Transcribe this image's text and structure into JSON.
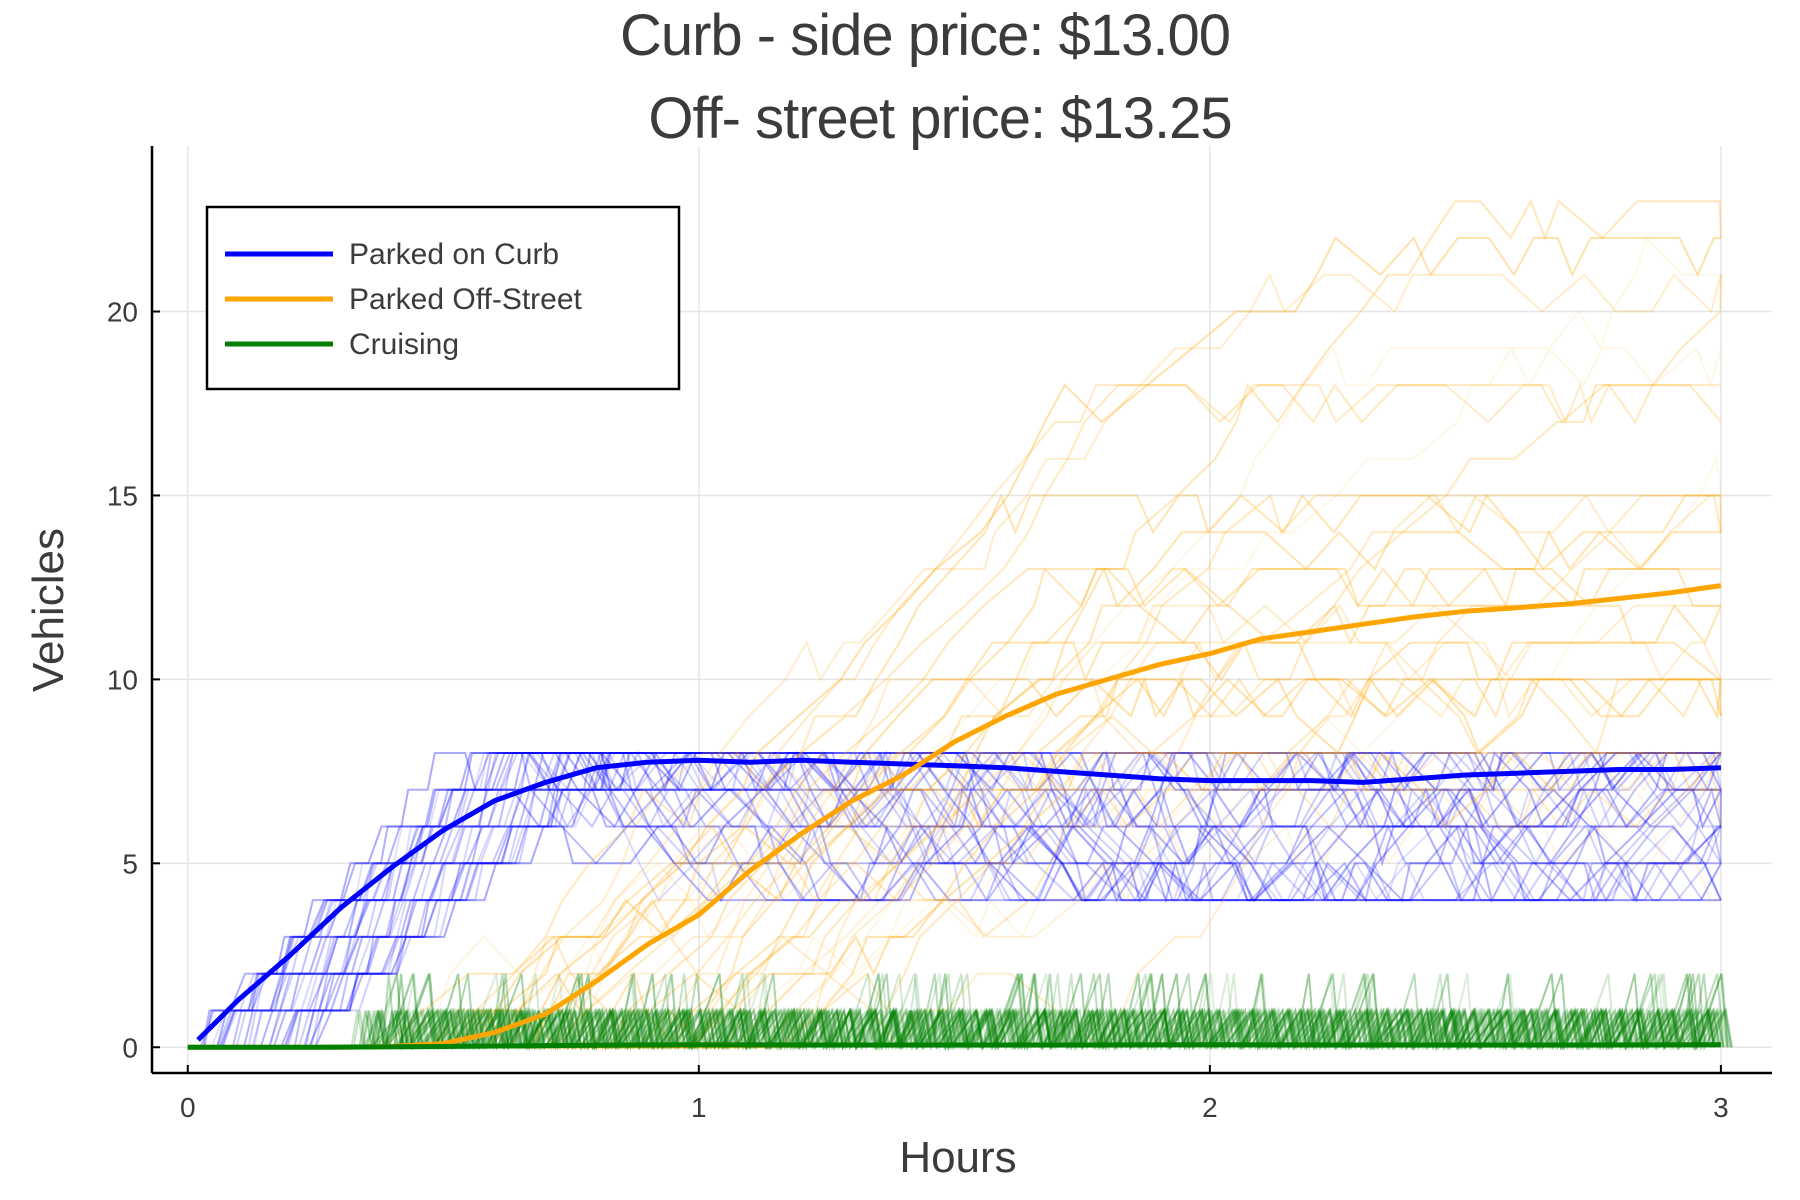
{
  "chart_data": {
    "type": "line",
    "title_line1": "Curb - side price: $13.00",
    "title_line2": "Off- street price: $13.25",
    "xlabel": "Hours",
    "ylabel": "Vehicles",
    "xlim": [
      -0.07,
      3.1
    ],
    "ylim": [
      -0.7,
      24.5
    ],
    "xticks": [
      0,
      1,
      2,
      3
    ],
    "yticks": [
      0,
      5,
      10,
      15,
      20
    ],
    "xtick_labels": [
      "0",
      "1",
      "2",
      "3"
    ],
    "ytick_labels": [
      "0",
      "5",
      "10",
      "15",
      "20"
    ],
    "grid": true,
    "legend_position": "top-left",
    "colors": {
      "curb": "#0000ff",
      "offstreet": "#ffa500",
      "cruising": "#008000"
    },
    "series": [
      {
        "name": "Parked on Curb",
        "x": [
          0.02,
          0.1,
          0.2,
          0.3,
          0.4,
          0.5,
          0.6,
          0.7,
          0.8,
          0.9,
          1.0,
          1.1,
          1.2,
          1.3,
          1.4,
          1.5,
          1.6,
          1.7,
          1.8,
          1.9,
          2.0,
          2.1,
          2.2,
          2.3,
          2.4,
          2.5,
          2.6,
          2.7,
          2.8,
          2.9,
          3.0
        ],
        "values": [
          0.2,
          1.3,
          2.5,
          3.8,
          4.9,
          5.9,
          6.7,
          7.2,
          7.6,
          7.75,
          7.8,
          7.75,
          7.8,
          7.75,
          7.7,
          7.65,
          7.6,
          7.5,
          7.4,
          7.3,
          7.25,
          7.25,
          7.25,
          7.2,
          7.3,
          7.4,
          7.45,
          7.5,
          7.55,
          7.55,
          7.6
        ]
      },
      {
        "name": "Parked Off-Street",
        "x": [
          0.0,
          0.1,
          0.2,
          0.3,
          0.4,
          0.5,
          0.6,
          0.7,
          0.8,
          0.9,
          1.0,
          1.1,
          1.2,
          1.3,
          1.4,
          1.5,
          1.6,
          1.7,
          1.8,
          1.9,
          2.0,
          2.1,
          2.2,
          2.3,
          2.4,
          2.5,
          2.6,
          2.7,
          2.8,
          2.9,
          3.0
        ],
        "values": [
          0.0,
          0.0,
          0.0,
          0.0,
          0.02,
          0.1,
          0.4,
          0.9,
          1.8,
          2.8,
          3.6,
          4.8,
          5.8,
          6.7,
          7.4,
          8.3,
          9.0,
          9.6,
          10.0,
          10.4,
          10.7,
          11.1,
          11.3,
          11.5,
          11.7,
          11.85,
          11.95,
          12.05,
          12.2,
          12.35,
          12.55
        ]
      },
      {
        "name": "Cruising",
        "x": [
          0.0,
          0.25,
          0.5,
          0.75,
          1.0,
          1.25,
          1.5,
          1.75,
          2.0,
          2.25,
          2.5,
          2.75,
          3.0
        ],
        "values": [
          0.0,
          0.0,
          0.02,
          0.05,
          0.07,
          0.06,
          0.06,
          0.06,
          0.07,
          0.06,
          0.06,
          0.06,
          0.07
        ]
      }
    ]
  }
}
